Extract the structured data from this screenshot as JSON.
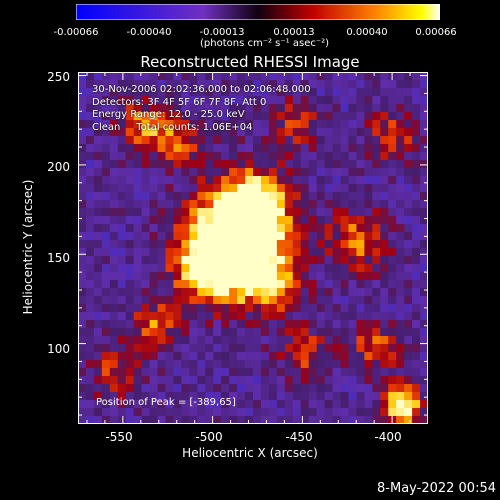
{
  "colorbar": {
    "ticks": [
      "-0.00066",
      "-0.00040",
      "-0.00013",
      "0.00013",
      "0.00040",
      "0.00066"
    ],
    "unit": "(photons cm⁻² s⁻¹ asec⁻²)"
  },
  "chart_data": {
    "type": "heatmap",
    "title": "Reconstructed RHESSI Image",
    "xlabel": "Heliocentric X (arcsec)",
    "ylabel": "Heliocentric Y (arcsec)",
    "xlim": [
      -575,
      -380
    ],
    "ylim": [
      55,
      252
    ],
    "x_ticks": [
      "-550",
      "-500",
      "-450",
      "-400"
    ],
    "y_ticks": [
      "100",
      "150",
      "200",
      "250"
    ],
    "colorscale_range": [
      -0.00066,
      0.00066
    ],
    "colors": [
      "#1a2bff",
      "#5a2ab0",
      "#3c1a5a",
      "#c01010",
      "#ff6a00",
      "#fff000",
      "#ffffff"
    ],
    "annotations": [
      "30-Nov-2006 02:02:36.000 to 02:06:48.000",
      "Detectors: 3F 4F 5F 6F 7F 8F, Att 0",
      "Energy Range: 12.0 - 25.0 keV",
      "Clean     Total counts: 1.06E+04"
    ],
    "peak_label": "Position of Peak = [-389,65]"
  },
  "footer": "8-May-2022 00:54"
}
